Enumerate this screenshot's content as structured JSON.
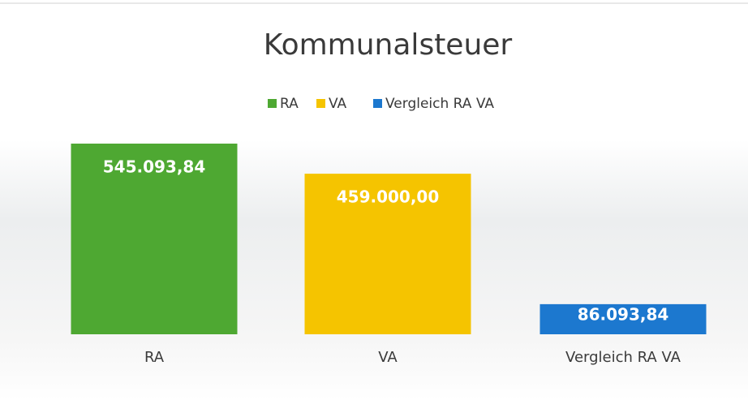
{
  "chart_data": {
    "type": "bar",
    "title": "Kommunalsteuer",
    "categories": [
      "RA",
      "VA",
      "Vergleich RA VA"
    ],
    "values": [
      545093.84,
      459000.0,
      86093.84
    ],
    "value_labels": [
      "545.093,84",
      "459.000,00",
      "86.093,84"
    ],
    "colors": [
      "#4ea832",
      "#f5c400",
      "#1c78cf"
    ],
    "legend": "top"
  }
}
